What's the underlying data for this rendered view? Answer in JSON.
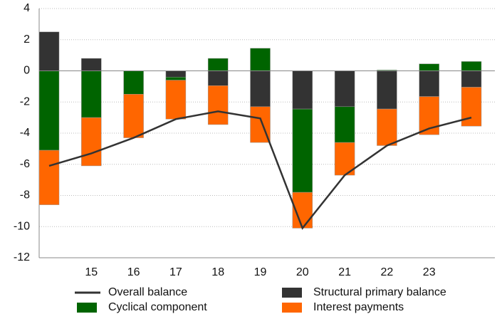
{
  "chart_data": {
    "type": "bar",
    "categories": [
      null,
      "15",
      "16",
      "17",
      "18",
      "19",
      "20",
      "21",
      "22",
      "23",
      null
    ],
    "series": [
      {
        "name": "Structural primary balance",
        "color": "#333333",
        "values": [
          2.5,
          0.8,
          0,
          -0.4,
          -0.95,
          -2.3,
          -2.45,
          -2.3,
          -2.45,
          -1.65,
          -1.05
        ]
      },
      {
        "name": "Cyclical component",
        "color": "#006400",
        "values": [
          -5.1,
          -3.0,
          -1.5,
          -0.2,
          0.8,
          1.45,
          -5.35,
          -2.3,
          0.05,
          0.45,
          0.6
        ]
      },
      {
        "name": "Interest payments",
        "color": "#ff6600",
        "values": [
          -3.5,
          -3.1,
          -2.8,
          -2.5,
          -2.5,
          -2.3,
          -2.3,
          -2.1,
          -2.35,
          -2.45,
          -2.5
        ]
      },
      {
        "name": "Overall balance",
        "color": "#333333",
        "type": "line",
        "values": [
          -6.1,
          -5.3,
          -4.3,
          -3.1,
          -2.6,
          -3.05,
          -10.1,
          -6.7,
          -4.8,
          -3.7,
          -3.0
        ]
      }
    ],
    "ylim": [
      -12,
      4
    ],
    "yticks": [
      -12,
      -10,
      -8,
      -6,
      -4,
      -2,
      0,
      2,
      4
    ],
    "grid": true
  }
}
